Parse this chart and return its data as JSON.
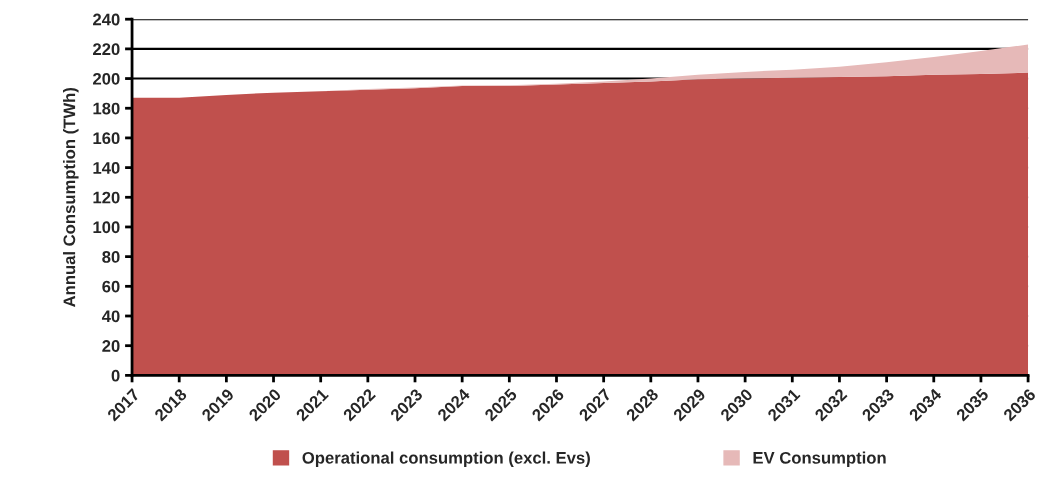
{
  "chart_data": {
    "type": "area",
    "stacked": true,
    "ylabel": "Annual Consumption (TWh)",
    "categories": [
      "2017",
      "2018",
      "2019",
      "2020",
      "2021",
      "2022",
      "2023",
      "2024",
      "2025",
      "2026",
      "2027",
      "2028",
      "2029",
      "2030",
      "2031",
      "2032",
      "2033",
      "2034",
      "2035",
      "2036"
    ],
    "series": [
      {
        "name": "Operational consumption (excl. Evs)",
        "color": "#c0504d",
        "values": [
          187,
          187,
          189,
          190.5,
          191.5,
          192.5,
          193.5,
          195,
          195,
          196,
          197,
          198,
          199.5,
          200,
          200.5,
          201,
          201.5,
          202.5,
          203,
          204
        ]
      },
      {
        "name": "EV Consumption",
        "color": "#e6b9b8",
        "values": [
          0,
          0,
          0,
          0,
          0,
          0.5,
          0.5,
          0.3,
          0.5,
          0.5,
          1,
          2,
          3,
          4.5,
          5.5,
          7,
          9.5,
          12,
          15.5,
          19
        ]
      }
    ],
    "ylim": [
      0,
      240
    ],
    "yticks": [
      0,
      20,
      40,
      60,
      80,
      100,
      120,
      140,
      160,
      180,
      200,
      220,
      240
    ],
    "grid": "y",
    "legend": "bottom"
  }
}
